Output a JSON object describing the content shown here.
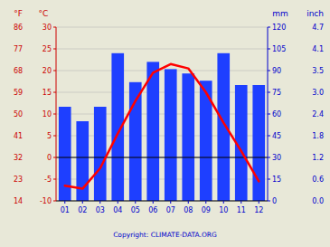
{
  "chart_data": {
    "type": "bar",
    "categories": [
      "01",
      "02",
      "03",
      "04",
      "05",
      "06",
      "07",
      "08",
      "09",
      "10",
      "11",
      "12"
    ],
    "series": [
      {
        "type": "bar",
        "axis": "y2",
        "color": "#1e3fff",
        "values": [
          65,
          55,
          65,
          102,
          82,
          96,
          91,
          88,
          83,
          102,
          80,
          80
        ]
      },
      {
        "type": "line",
        "axis": "y",
        "color": "#ff0000",
        "values": [
          -6.5,
          -7.2,
          -2.5,
          5.5,
          13.0,
          19.5,
          21.5,
          20.5,
          15.0,
          8.0,
          1.5,
          -5.5
        ]
      }
    ],
    "ylabel": "°C",
    "y_alt_label": "°F",
    "y2label": "mm",
    "y2_alt_label": "inch",
    "ylim": [
      -10,
      30
    ],
    "yticks": [
      -10,
      -5,
      0,
      5,
      10,
      15,
      20,
      25,
      30
    ],
    "y_alt_ticks": [
      {
        "value": -10,
        "label": "14"
      },
      {
        "value": -5,
        "label": "23"
      },
      {
        "value": 0,
        "label": "32"
      },
      {
        "value": 5,
        "label": "41"
      },
      {
        "value": 10,
        "label": "50"
      },
      {
        "value": 15,
        "label": "59"
      },
      {
        "value": 20,
        "label": "68"
      },
      {
        "value": 25,
        "label": "77"
      },
      {
        "value": 30,
        "label": "86"
      }
    ],
    "y2lim": [
      0,
      120
    ],
    "y2ticks": [
      0,
      15,
      30,
      45,
      60,
      75,
      90,
      105,
      120
    ],
    "y2_alt_ticks": [
      {
        "value": 0,
        "label": "0.0"
      },
      {
        "value": 15,
        "label": "0.6"
      },
      {
        "value": 30,
        "label": "1.2"
      },
      {
        "value": 45,
        "label": "1.8"
      },
      {
        "value": 60,
        "label": "2.4"
      },
      {
        "value": 75,
        "label": "3.0"
      },
      {
        "value": 90,
        "label": "3.5"
      },
      {
        "value": 105,
        "label": "4.1"
      },
      {
        "value": 120,
        "label": "4.7"
      }
    ],
    "hlines": [
      {
        "value": 0,
        "axis": "y",
        "color": "#000000"
      }
    ],
    "grid": true,
    "axis_colors": {
      "y": "#cc0000",
      "y2": "#0000cc"
    },
    "background": "#e8e8d8",
    "annotation": "Copyright: CLIMATE-DATA.ORG"
  }
}
